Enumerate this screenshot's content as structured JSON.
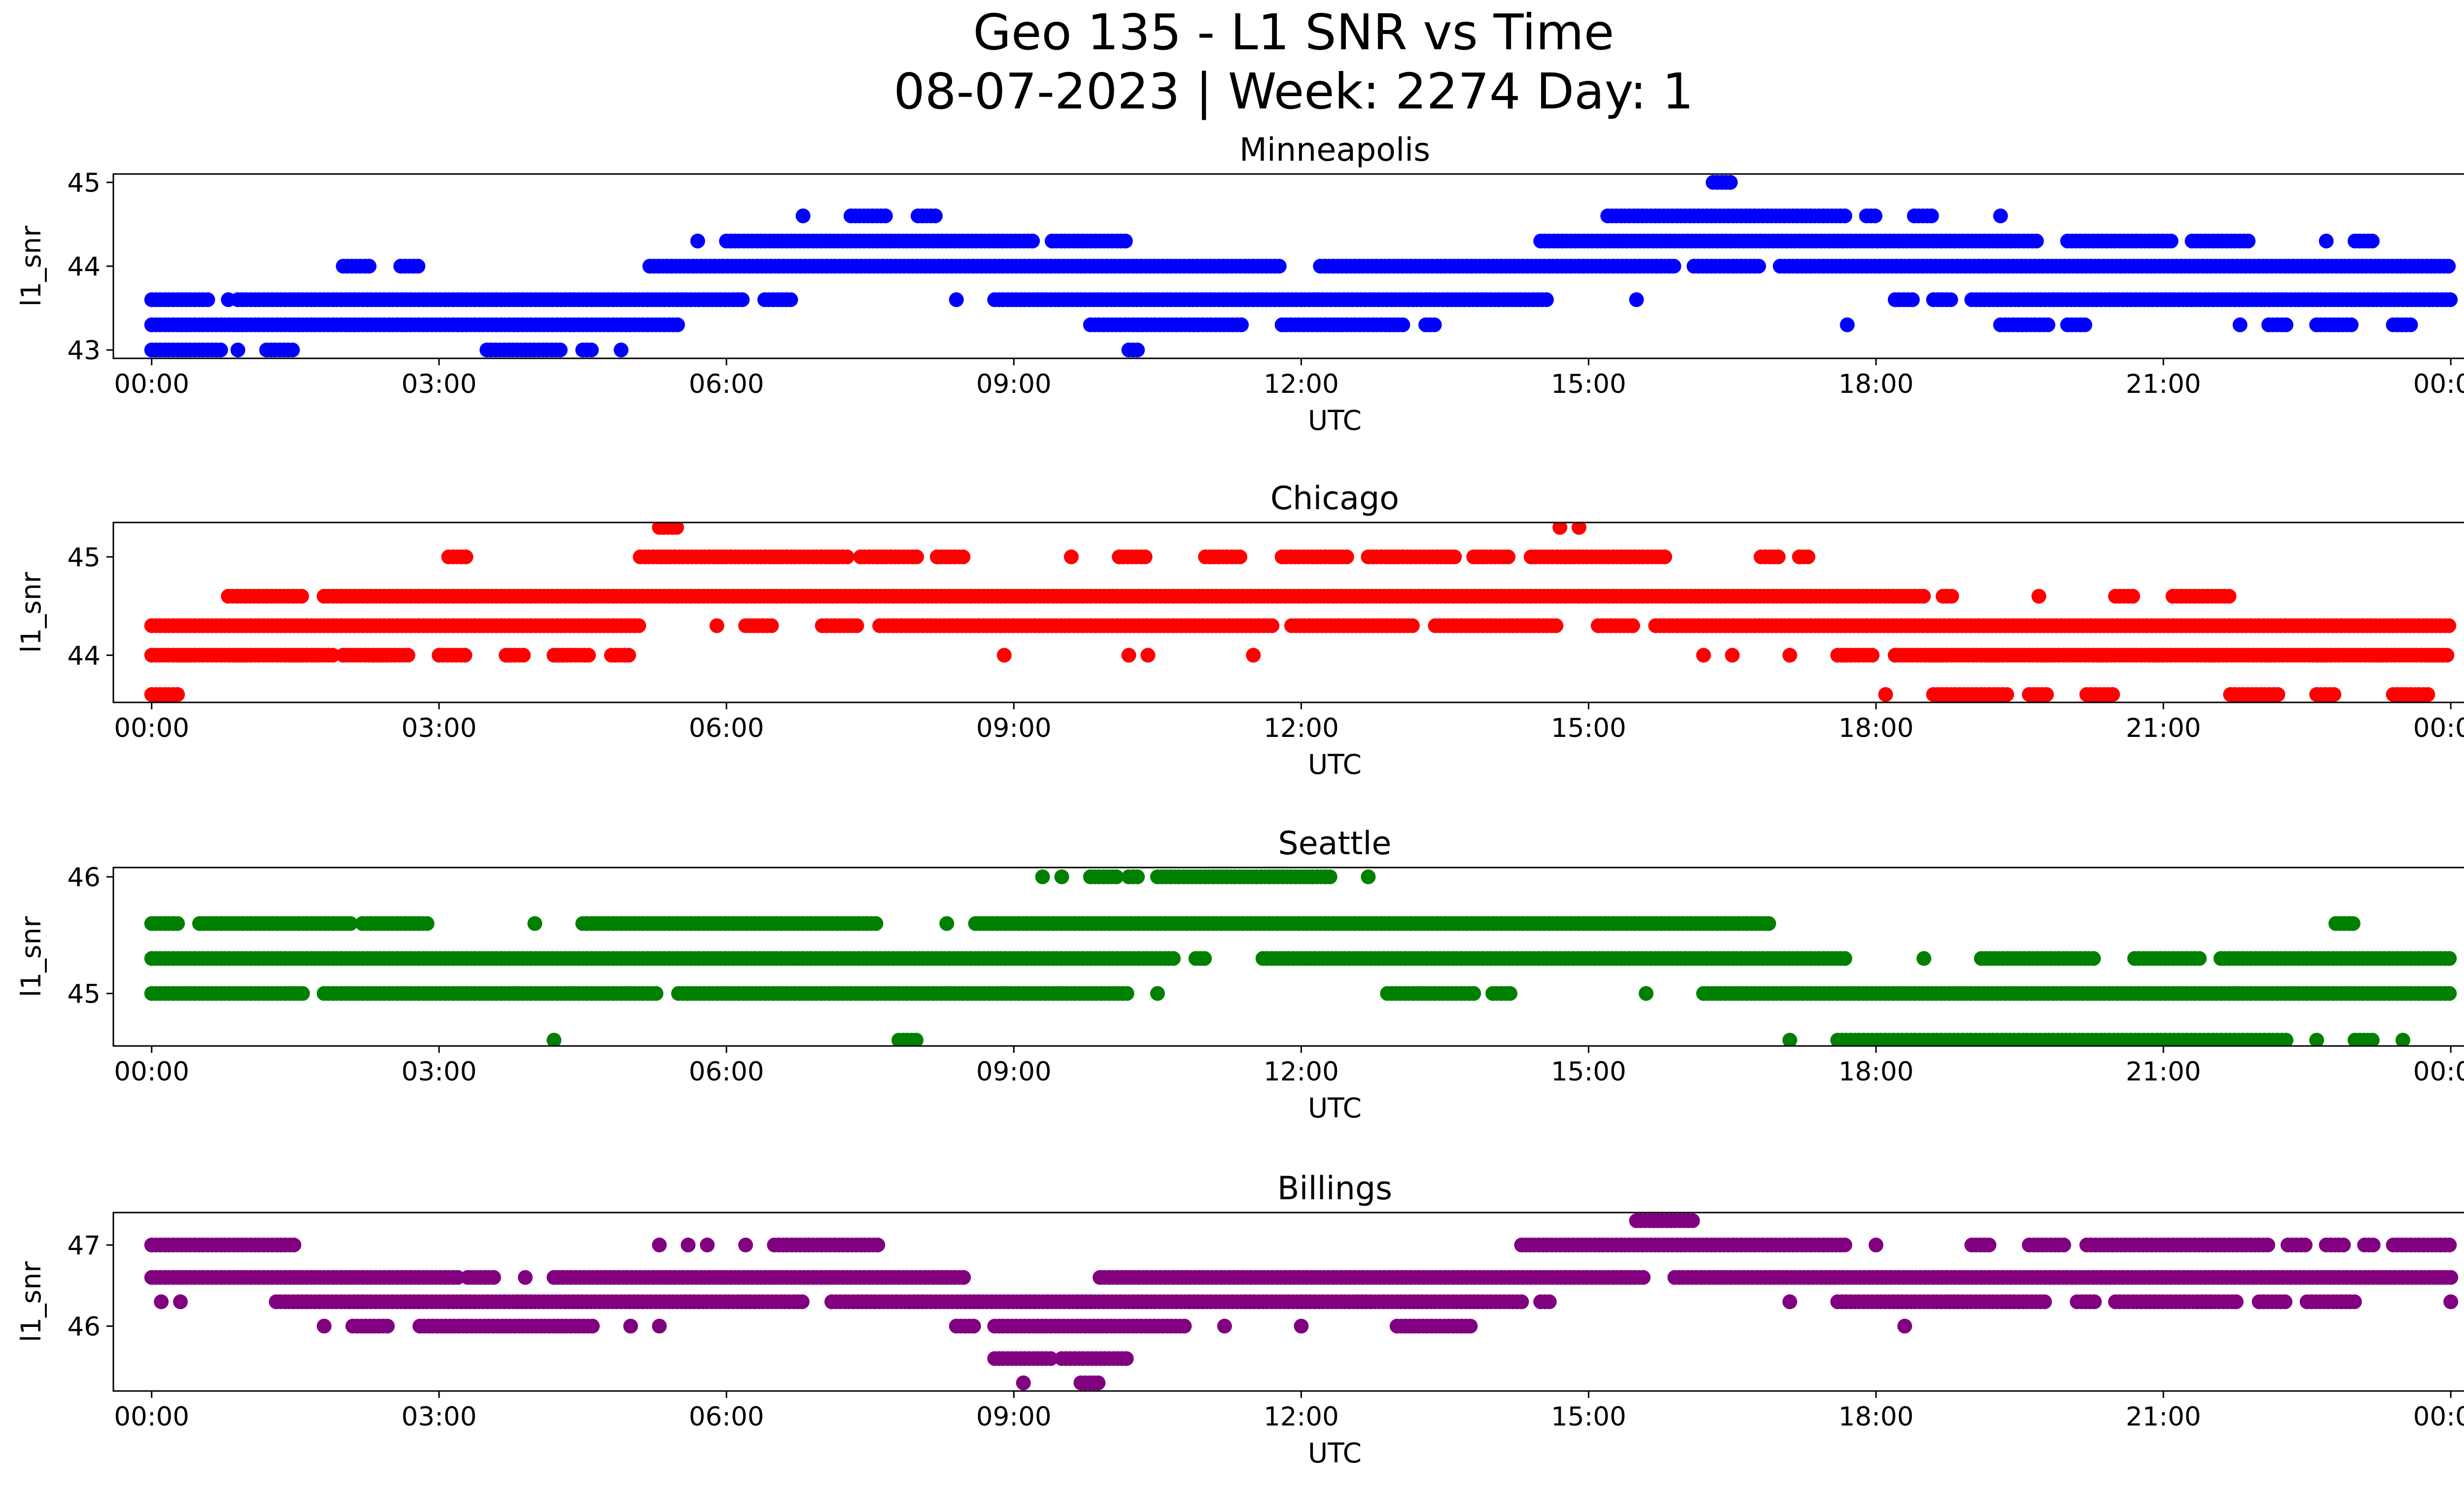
{
  "figure": {
    "title_line1": "Geo 135 - L1 SNR vs Time",
    "title_line2": "08-07-2023 | Week: 2274 Day: 1"
  },
  "chart_data": [
    {
      "type": "scatter",
      "title": "Minneapolis",
      "xlabel": "UTC",
      "ylabel": "l1_snr",
      "xlim": [
        -0.4,
        25.1
      ],
      "ylim": [
        42.9,
        45.1
      ],
      "xticks": [
        "00:00",
        "03:00",
        "06:00",
        "09:00",
        "12:00",
        "15:00",
        "18:00",
        "21:00",
        "00:00"
      ],
      "yticks": [
        43,
        44,
        45
      ],
      "color": "#0000ff",
      "series": [
        {
          "y": 43.0,
          "segments": [
            [
              0.0,
              0.75
            ],
            [
              0.9,
              0.9
            ],
            [
              1.2,
              1.5
            ],
            [
              3.5,
              4.3
            ],
            [
              4.5,
              4.6
            ],
            [
              4.9,
              4.9
            ],
            [
              10.2,
              10.3
            ]
          ]
        },
        {
          "y": 43.3,
          "segments": [
            [
              0.0,
              5.5
            ],
            [
              9.8,
              11.4
            ],
            [
              11.8,
              13.1
            ],
            [
              13.3,
              13.4
            ],
            [
              17.7,
              17.7
            ],
            [
              19.3,
              19.8
            ],
            [
              20.0,
              20.2
            ],
            [
              21.8,
              21.8
            ],
            [
              22.1,
              22.3
            ],
            [
              22.6,
              23.0
            ],
            [
              23.4,
              23.6
            ]
          ]
        },
        {
          "y": 43.6,
          "segments": [
            [
              0.0,
              0.6
            ],
            [
              0.8,
              0.8
            ],
            [
              0.9,
              6.2
            ],
            [
              6.4,
              6.7
            ],
            [
              8.4,
              8.4
            ],
            [
              8.8,
              14.6
            ],
            [
              15.5,
              15.5
            ],
            [
              18.2,
              18.4
            ],
            [
              18.6,
              18.8
            ],
            [
              19.0,
              24.0
            ]
          ]
        },
        {
          "y": 44.0,
          "segments": [
            [
              2.0,
              2.3
            ],
            [
              2.6,
              2.8
            ],
            [
              5.2,
              11.8
            ],
            [
              12.2,
              15.9
            ],
            [
              16.1,
              16.8
            ],
            [
              17.0,
              24.0
            ]
          ]
        },
        {
          "y": 44.3,
          "segments": [
            [
              5.7,
              5.7
            ],
            [
              6.0,
              9.2
            ],
            [
              9.4,
              10.2
            ],
            [
              14.5,
              19.7
            ],
            [
              20.0,
              21.1
            ],
            [
              21.3,
              21.9
            ],
            [
              22.7,
              22.7
            ],
            [
              23.0,
              23.2
            ]
          ]
        },
        {
          "y": 44.6,
          "segments": [
            [
              6.8,
              6.8
            ],
            [
              7.3,
              7.7
            ],
            [
              8.0,
              8.2
            ],
            [
              15.2,
              17.7
            ],
            [
              17.9,
              18.0
            ],
            [
              18.4,
              18.6
            ],
            [
              19.3,
              19.3
            ]
          ]
        },
        {
          "y": 45.0,
          "segments": [
            [
              16.3,
              16.5
            ]
          ]
        }
      ]
    },
    {
      "type": "scatter",
      "title": "Chicago",
      "xlabel": "UTC",
      "ylabel": "l1_snr",
      "xlim": [
        -0.4,
        25.1
      ],
      "ylim": [
        43.52,
        45.35
      ],
      "xticks": [
        "00:00",
        "03:00",
        "06:00",
        "09:00",
        "12:00",
        "15:00",
        "18:00",
        "21:00",
        "00:00"
      ],
      "yticks": [
        44,
        45
      ],
      "color": "#ff0000",
      "series": [
        {
          "y": 43.6,
          "segments": [
            [
              0.0,
              0.3
            ],
            [
              18.1,
              18.1
            ],
            [
              18.6,
              19.4
            ],
            [
              19.6,
              19.8
            ],
            [
              20.2,
              20.5
            ],
            [
              21.7,
              22.2
            ],
            [
              22.6,
              22.8
            ],
            [
              23.4,
              23.8
            ]
          ]
        },
        {
          "y": 44.0,
          "segments": [
            [
              0.0,
              1.9
            ],
            [
              2.0,
              2.7
            ],
            [
              3.0,
              3.3
            ],
            [
              3.7,
              3.9
            ],
            [
              4.2,
              4.6
            ],
            [
              4.8,
              5.0
            ],
            [
              8.9,
              8.9
            ],
            [
              10.2,
              10.2
            ],
            [
              10.4,
              10.4
            ],
            [
              11.5,
              11.5
            ],
            [
              16.2,
              16.2
            ],
            [
              16.5,
              16.5
            ],
            [
              17.1,
              17.1
            ],
            [
              17.6,
              18.0
            ],
            [
              18.2,
              24.0
            ]
          ]
        },
        {
          "y": 44.3,
          "segments": [
            [
              0.0,
              5.1
            ],
            [
              5.9,
              5.9
            ],
            [
              6.2,
              6.5
            ],
            [
              7.0,
              7.4
            ],
            [
              7.6,
              11.7
            ],
            [
              11.9,
              13.2
            ],
            [
              13.4,
              14.7
            ],
            [
              15.1,
              15.5
            ],
            [
              15.7,
              24.0
            ]
          ]
        },
        {
          "y": 44.6,
          "segments": [
            [
              0.8,
              1.6
            ],
            [
              1.8,
              18.5
            ],
            [
              18.7,
              18.8
            ],
            [
              19.7,
              19.7
            ],
            [
              20.5,
              20.7
            ],
            [
              21.1,
              21.7
            ]
          ]
        },
        {
          "y": 45.0,
          "segments": [
            [
              5.1,
              7.3
            ],
            [
              7.4,
              8.0
            ],
            [
              8.2,
              8.5
            ],
            [
              9.6,
              9.6
            ],
            [
              10.1,
              10.4
            ],
            [
              11.0,
              11.4
            ],
            [
              11.8,
              12.5
            ],
            [
              12.7,
              13.6
            ],
            [
              13.8,
              14.2
            ],
            [
              14.4,
              15.8
            ],
            [
              16.8,
              17.0
            ],
            [
              17.2,
              17.3
            ],
            [
              3.1,
              3.3
            ]
          ]
        },
        {
          "y": 45.3,
          "segments": [
            [
              5.3,
              5.5
            ],
            [
              14.7,
              14.7
            ],
            [
              14.9,
              14.9
            ]
          ]
        }
      ]
    },
    {
      "type": "scatter",
      "title": "Seattle",
      "xlabel": "UTC",
      "ylabel": "l1_snr",
      "xlim": [
        -0.4,
        25.1
      ],
      "ylim": [
        44.55,
        46.08
      ],
      "xticks": [
        "00:00",
        "03:00",
        "06:00",
        "09:00",
        "12:00",
        "15:00",
        "18:00",
        "21:00",
        "00:00"
      ],
      "yticks": [
        45,
        46
      ],
      "color": "#008000",
      "series": [
        {
          "y": 44.6,
          "segments": [
            [
              4.2,
              4.2
            ],
            [
              7.8,
              8.0
            ],
            [
              17.1,
              17.1
            ],
            [
              17.6,
              22.3
            ],
            [
              22.6,
              22.6
            ],
            [
              23.0,
              23.2
            ],
            [
              23.5,
              23.5
            ]
          ]
        },
        {
          "y": 45.0,
          "segments": [
            [
              0.0,
              1.6
            ],
            [
              1.8,
              5.3
            ],
            [
              5.5,
              10.2
            ],
            [
              10.5,
              10.5
            ],
            [
              12.9,
              13.8
            ],
            [
              14.0,
              14.2
            ],
            [
              15.6,
              15.6
            ],
            [
              16.2,
              24.0
            ]
          ]
        },
        {
          "y": 45.3,
          "segments": [
            [
              0.0,
              10.7
            ],
            [
              10.9,
              11.0
            ],
            [
              11.6,
              17.7
            ],
            [
              18.5,
              18.5
            ],
            [
              19.1,
              20.3
            ],
            [
              20.7,
              21.4
            ],
            [
              21.6,
              24.0
            ]
          ]
        },
        {
          "y": 45.6,
          "segments": [
            [
              0.0,
              0.3
            ],
            [
              0.5,
              2.1
            ],
            [
              2.2,
              2.9
            ],
            [
              4.0,
              4.0
            ],
            [
              4.5,
              7.6
            ],
            [
              8.3,
              8.3
            ],
            [
              8.6,
              16.9
            ],
            [
              22.8,
              23.0
            ]
          ]
        },
        {
          "y": 46.0,
          "segments": [
            [
              9.3,
              9.3
            ],
            [
              9.5,
              9.5
            ],
            [
              9.8,
              10.1
            ],
            [
              10.2,
              10.3
            ],
            [
              10.5,
              12.3
            ],
            [
              12.7,
              12.7
            ]
          ]
        }
      ]
    },
    {
      "type": "scatter",
      "title": "Billings",
      "xlabel": "UTC",
      "ylabel": "l1_snr",
      "xlim": [
        -0.4,
        25.1
      ],
      "ylim": [
        45.2,
        47.4
      ],
      "xticks": [
        "00:00",
        "03:00",
        "06:00",
        "09:00",
        "12:00",
        "15:00",
        "18:00",
        "21:00",
        "00:00"
      ],
      "yticks": [
        46,
        47
      ],
      "color": "#800080",
      "series": [
        {
          "y": 45.3,
          "segments": [
            [
              9.1,
              9.1
            ],
            [
              9.7,
              9.9
            ]
          ]
        },
        {
          "y": 45.6,
          "segments": [
            [
              8.8,
              9.4
            ],
            [
              9.5,
              10.2
            ]
          ]
        },
        {
          "y": 46.0,
          "segments": [
            [
              1.8,
              1.8
            ],
            [
              2.1,
              2.5
            ],
            [
              2.8,
              4.6
            ],
            [
              5.0,
              5.0
            ],
            [
              5.3,
              5.3
            ],
            [
              8.4,
              8.6
            ],
            [
              8.8,
              10.8
            ],
            [
              11.2,
              11.2
            ],
            [
              12.0,
              12.0
            ],
            [
              13.0,
              13.8
            ],
            [
              18.3,
              18.3
            ]
          ]
        },
        {
          "y": 46.3,
          "segments": [
            [
              0.1,
              0.1
            ],
            [
              0.3,
              0.3
            ],
            [
              1.3,
              6.8
            ],
            [
              7.1,
              14.3
            ],
            [
              14.5,
              14.6
            ],
            [
              17.1,
              17.1
            ],
            [
              17.6,
              19.8
            ],
            [
              20.1,
              20.3
            ],
            [
              20.5,
              21.8
            ],
            [
              22.0,
              22.3
            ],
            [
              22.5,
              23.0
            ],
            [
              24.0,
              24.0
            ]
          ]
        },
        {
          "y": 46.6,
          "segments": [
            [
              0.0,
              3.2
            ],
            [
              3.3,
              3.6
            ],
            [
              3.9,
              3.9
            ],
            [
              4.2,
              8.5
            ],
            [
              9.9,
              15.6
            ],
            [
              15.9,
              24.0
            ]
          ]
        },
        {
          "y": 47.0,
          "segments": [
            [
              0.0,
              1.5
            ],
            [
              5.3,
              5.3
            ],
            [
              5.6,
              5.6
            ],
            [
              5.8,
              5.8
            ],
            [
              6.2,
              6.2
            ],
            [
              6.5,
              7.6
            ],
            [
              14.3,
              17.7
            ],
            [
              18.0,
              18.0
            ],
            [
              19.0,
              19.2
            ],
            [
              19.6,
              20.0
            ],
            [
              20.2,
              22.1
            ],
            [
              22.3,
              22.5
            ],
            [
              22.7,
              22.9
            ],
            [
              23.1,
              23.2
            ],
            [
              23.4,
              24.0
            ]
          ]
        },
        {
          "y": 47.3,
          "segments": [
            [
              15.5,
              16.1
            ]
          ]
        }
      ]
    }
  ]
}
